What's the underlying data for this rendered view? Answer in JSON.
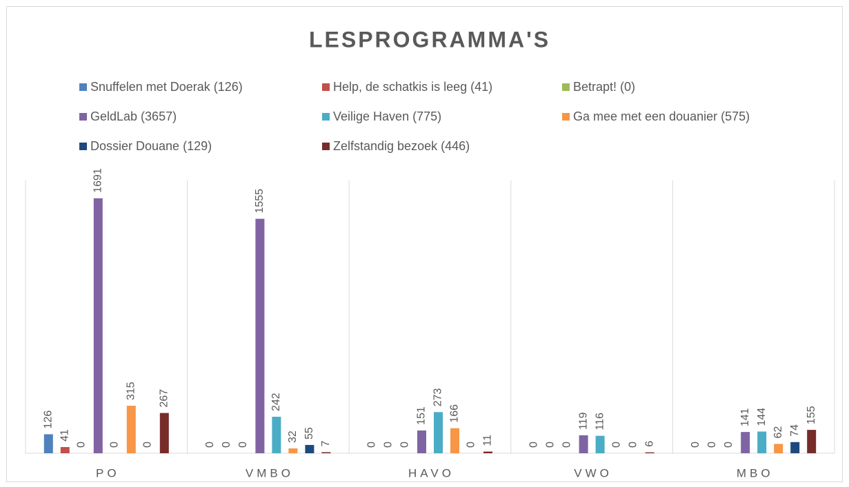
{
  "chart_data": {
    "type": "bar",
    "title": "LESPROGRAMMA'S",
    "categories": [
      "PO",
      "VMBO",
      "HAVO",
      "VWO",
      "MBO"
    ],
    "series": [
      {
        "name": "Snuffelen met Doerak (126)",
        "color": "#4f81bd",
        "values": [
          126,
          0,
          0,
          0,
          0
        ]
      },
      {
        "name": "Help, de schatkis is leeg (41)",
        "color": "#c0504d",
        "values": [
          41,
          0,
          0,
          0,
          0
        ]
      },
      {
        "name": "Betrapt! (0)",
        "color": "#9bbb59",
        "values": [
          0,
          0,
          0,
          0,
          0
        ]
      },
      {
        "name": "GeldLab (3657)",
        "color": "#8064a2",
        "values": [
          1691,
          1555,
          151,
          119,
          141
        ]
      },
      {
        "name": "Veilige Haven (775)",
        "color": "#4bacc6",
        "values": [
          0,
          242,
          273,
          116,
          144
        ]
      },
      {
        "name": "Ga mee met een douanier (575)",
        "color": "#f79646",
        "values": [
          315,
          32,
          166,
          0,
          62
        ]
      },
      {
        "name": "Dossier Douane (129)",
        "color": "#1f497d",
        "values": [
          0,
          55,
          0,
          0,
          74
        ]
      },
      {
        "name": "Zelfstandig bezoek (446)",
        "color": "#772c2a",
        "values": [
          267,
          7,
          11,
          6,
          155
        ]
      }
    ],
    "ylim": [
      0,
      1800
    ],
    "legend": "top"
  }
}
